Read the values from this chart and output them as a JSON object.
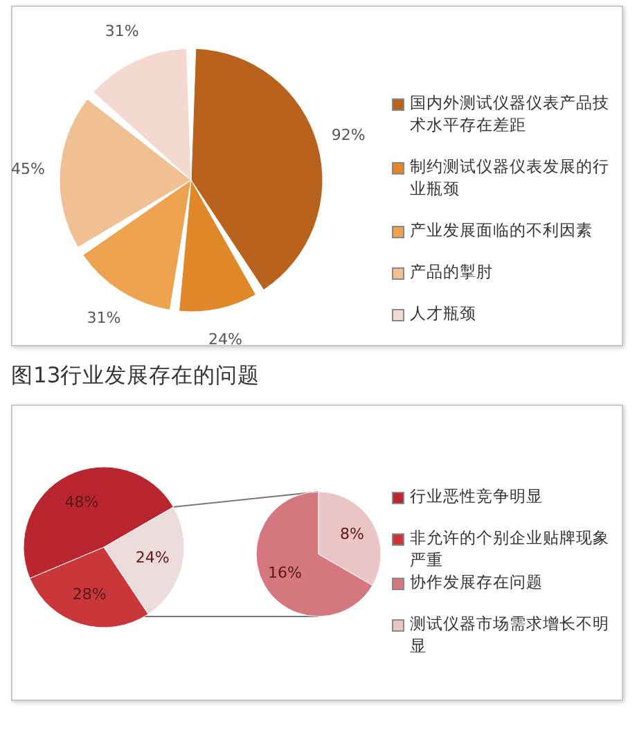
{
  "chart_data": [
    {
      "type": "pie",
      "title": "图13行业发展存在的问题",
      "categories": [
        "国内外测试仪器仪表产品技术水平存在差距",
        "制约测试仪器仪表发展的行业瓶颈",
        "产业发展面临的不利因素",
        "产品的掣肘",
        "人才瓶颈"
      ],
      "values": [
        92,
        24,
        31,
        45,
        31
      ],
      "colors": [
        "#b8621e",
        "#e0872a",
        "#eda24f",
        "#f0bf92",
        "#f3d9cf"
      ],
      "value_labels": [
        "92%",
        "24%",
        "31%",
        "45%",
        "31%"
      ],
      "legend": "right"
    },
    {
      "type": "pie",
      "categories": [
        "行业恶性竞争明显",
        "非允许的个别企业贴牌现象严重",
        null
      ],
      "values": [
        48,
        28,
        24
      ],
      "colors": [
        "#b9262f",
        "#c9373b",
        "#ecdcdc"
      ],
      "value_labels": [
        "48%",
        "28%",
        "24%"
      ],
      "legend": "right"
    },
    {
      "type": "pie",
      "categories": [
        "协作发展存在问题",
        "测试仪器市场需求增长不明显"
      ],
      "values": [
        16,
        8
      ],
      "colors": [
        "#d5777e",
        "#ebc4c6"
      ],
      "value_labels": [
        "16%",
        "8%"
      ],
      "legend": "right"
    }
  ]
}
